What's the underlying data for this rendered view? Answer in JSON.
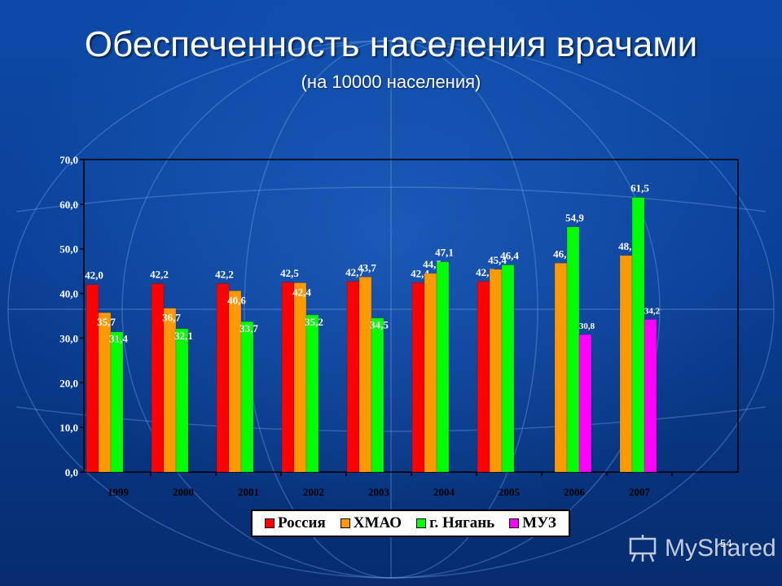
{
  "slide": {
    "title": "Обеспеченность населения врачами",
    "subtitle": "(на 10000 населения)",
    "page_number": "54",
    "watermark": "MyShared"
  },
  "colors": {
    "Россия": "#ff0000",
    "ХМАО": "#ff9900",
    "г. Нягань": "#00ff00",
    "МУЗ": "#ff00ff"
  },
  "chart_data": {
    "type": "bar",
    "title": "",
    "xlabel": "",
    "ylabel": "",
    "ylim": [
      0,
      70
    ],
    "yticks": [
      "0,0",
      "10,0",
      "20,0",
      "30,0",
      "40,0",
      "50,0",
      "60,0",
      "70,0"
    ],
    "categories": [
      "1999",
      "2000",
      "2001",
      "2002",
      "2003",
      "2004",
      "2005",
      "2006",
      "2007"
    ],
    "legend_position": "bottom",
    "grid": false,
    "series": [
      {
        "name": "Россия",
        "values": [
          42.0,
          42.2,
          42.2,
          42.5,
          42.7,
          42.4,
          42.7,
          null,
          null
        ],
        "labels": [
          "42,0",
          "42,2",
          "42,2",
          "42,5",
          "42,7",
          "42,4",
          "42,7",
          "",
          ""
        ]
      },
      {
        "name": "ХМАО",
        "values": [
          35.7,
          36.7,
          40.6,
          42.4,
          43.7,
          44.5,
          45.4,
          46.8,
          48.5
        ],
        "labels": [
          "35,7",
          "36,7",
          "40,6",
          "42,4",
          "43,7",
          "44,5",
          "45,4",
          "46,8",
          "48,5"
        ]
      },
      {
        "name": "г. Нягань",
        "values": [
          31.4,
          32.1,
          33.7,
          35.2,
          34.5,
          47.1,
          46.4,
          54.9,
          61.5
        ],
        "labels": [
          "31,4",
          "32,1",
          "33,7",
          "35,2",
          "34,5",
          "47,1",
          "46,4",
          "54,9",
          "61,5"
        ]
      },
      {
        "name": "МУЗ",
        "values": [
          null,
          null,
          null,
          null,
          null,
          null,
          null,
          30.8,
          34.2
        ],
        "labels": [
          "",
          "",
          "",
          "",
          "",
          "",
          "",
          "30,8",
          "34,2"
        ]
      }
    ]
  }
}
